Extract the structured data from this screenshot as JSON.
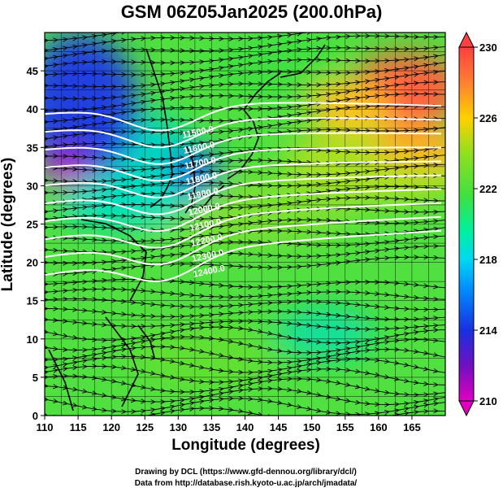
{
  "title": "GSM 06Z05Jan2025 (200.0hPa)",
  "x_axis": {
    "label": "Longitude (degrees)",
    "ticks": [
      "110",
      "115",
      "120",
      "125",
      "130",
      "135",
      "140",
      "145",
      "150",
      "155",
      "160",
      "165"
    ],
    "range": [
      110,
      170
    ]
  },
  "y_axis": {
    "label": "Latitude  (degrees)",
    "ticks": [
      "0",
      "5",
      "10",
      "15",
      "20",
      "25",
      "30",
      "35",
      "40",
      "45"
    ],
    "range": [
      0,
      50
    ]
  },
  "colorbar": {
    "ticks": [
      "210",
      "214",
      "218",
      "222",
      "226",
      "230"
    ],
    "range": [
      210,
      230
    ],
    "colors": [
      "#e000c0",
      "#6020c0",
      "#1840e0",
      "#00c0ff",
      "#00f0c0",
      "#40e040",
      "#a0e020",
      "#ffd000",
      "#ff8040",
      "#ff4040"
    ]
  },
  "contours": {
    "labels": [
      "11500.0",
      "11600.0",
      "11700.0",
      "11800.0",
      "11900.0",
      "12000.0",
      "12100.0",
      "12200.0",
      "12300.0",
      "12400.0"
    ]
  },
  "credits": {
    "line1": "Drawing by DCL (https://www.gfd-dennou.org/library/dcl/)",
    "line2": "Data from http://database.rish.kyoto-u.ac.jp/arch/jmadata/"
  }
}
